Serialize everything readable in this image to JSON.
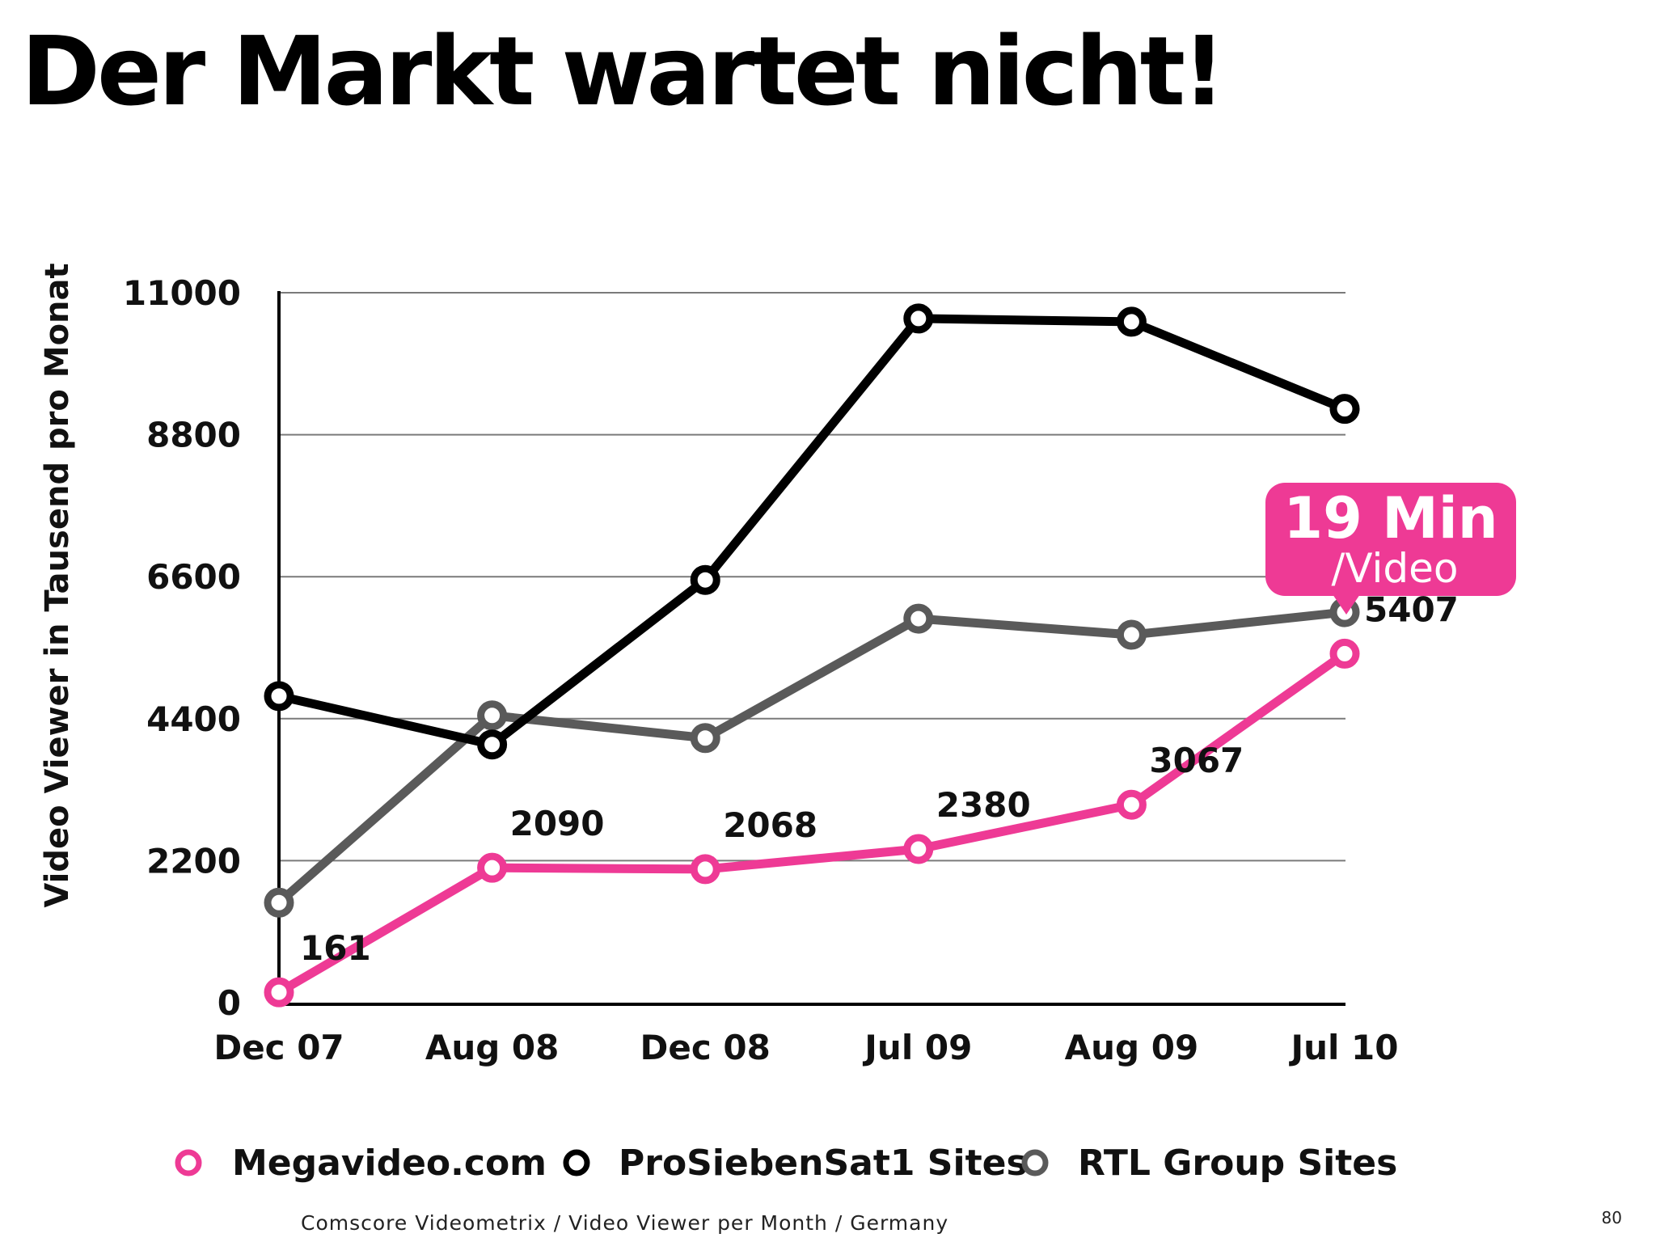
{
  "slide": {
    "title": "Der Markt wartet nicht!",
    "source": "Comscore Videometrix / Video Viewer per Month / Germany",
    "page_number": "80"
  },
  "chart_data": {
    "type": "line",
    "categories": [
      "Dec 07",
      "Aug 08",
      "Dec 08",
      "Jul 09",
      "Aug 09",
      "Jul 10"
    ],
    "ylabel": "Video Viewer in Tausend pro Monat",
    "xlabel": "",
    "ylim": [
      0,
      11000
    ],
    "yticks": [
      "0",
      "2200",
      "4400",
      "6600",
      "8800",
      "11000"
    ],
    "grid": true,
    "legend_position": "bottom",
    "series": [
      {
        "name": "Megavideo.com",
        "color": "#ee3a95",
        "values": [
          161,
          2090,
          2068,
          2380,
          3067,
          5407
        ],
        "data_labels": [
          "161",
          "2090",
          "2068",
          "2380",
          "3067",
          "5407"
        ]
      },
      {
        "name": "ProSiebenSat1 Sites",
        "color": "#000000",
        "values": [
          4750,
          4000,
          6550,
          10600,
          10550,
          9200
        ]
      },
      {
        "name": "RTL Group Sites",
        "color": "#5a5a5a",
        "values": [
          1550,
          4450,
          4100,
          5950,
          5700,
          6050
        ]
      }
    ],
    "annotation": {
      "line1": "19 Min",
      "line2": "/Video",
      "color": "#ee3a95"
    }
  }
}
